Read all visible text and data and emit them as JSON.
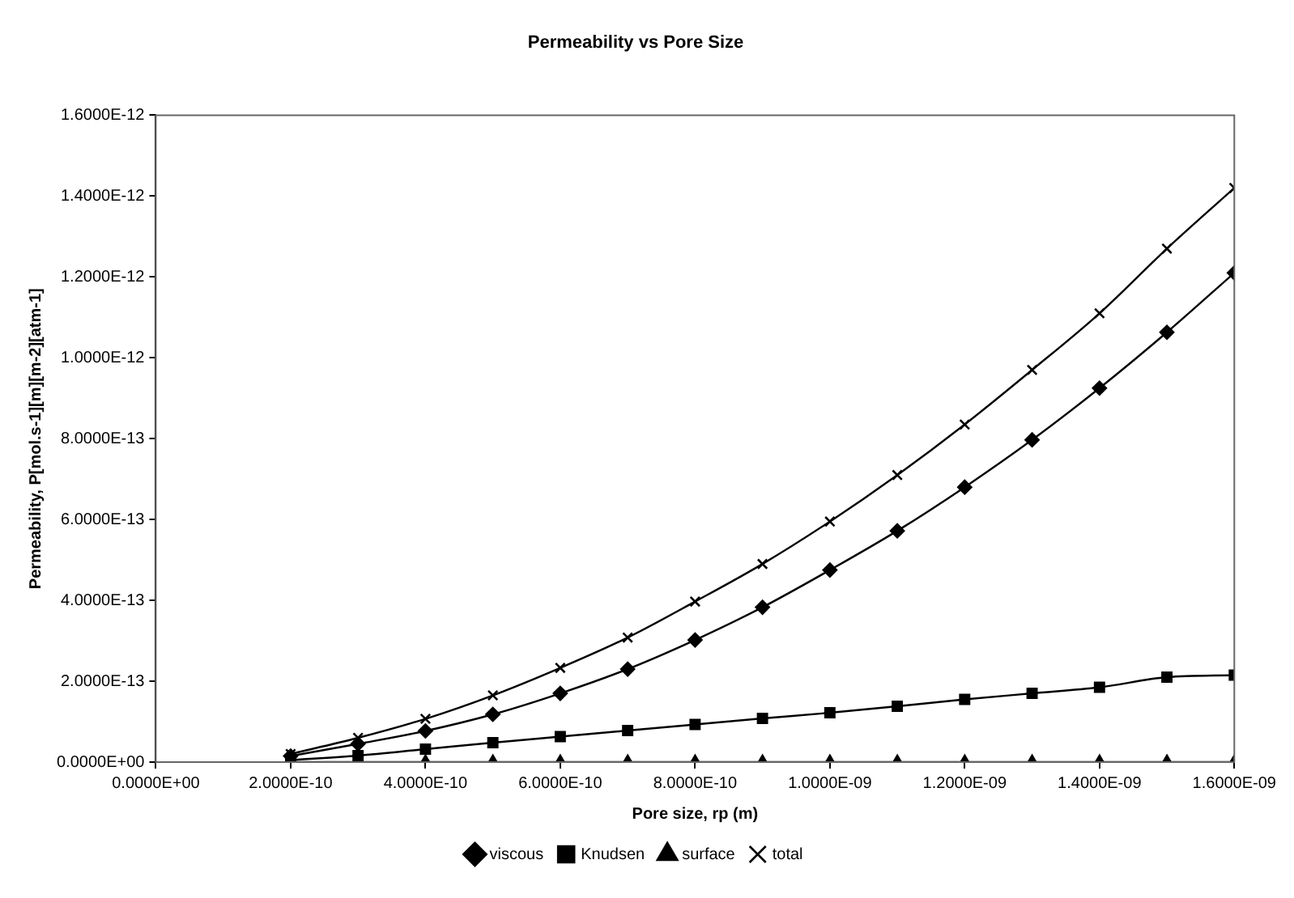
{
  "chart_data": {
    "type": "line",
    "title": "Permeability vs Pore Size",
    "xlabel": "Pore size, rp (m)",
    "ylabel": "Permeability, P[mol.s-1][m][m-2][atm-1]",
    "x": [
      2e-10,
      3e-10,
      4e-10,
      5e-10,
      6e-10,
      7e-10,
      8e-10,
      9e-10,
      1e-09,
      1.1e-09,
      1.2e-09,
      1.3e-09,
      1.4e-09,
      1.5e-09,
      1.6e-09
    ],
    "series": [
      {
        "name": "viscous",
        "color": "#000000",
        "marker": "diamond",
        "values": [
          1.5e-14,
          4.5e-14,
          7.7e-14,
          1.18e-13,
          1.7e-13,
          2.3e-13,
          3.02e-13,
          3.83e-13,
          4.75e-13,
          5.72e-13,
          6.8e-13,
          7.97e-13,
          9.25e-13,
          1.063e-12,
          1.21e-12
        ]
      },
      {
        "name": "Knudsen",
        "color": "#000000",
        "marker": "square",
        "values": [
          5e-15,
          1.6e-14,
          3.2e-14,
          4.8e-14,
          6.3e-14,
          7.8e-14,
          9.3e-14,
          1.08e-13,
          1.22e-13,
          1.38e-13,
          1.55e-13,
          1.7e-13,
          1.85e-13,
          2.1e-13,
          2.15e-13
        ]
      },
      {
        "name": "surface",
        "color": "#000000",
        "marker": "triangle",
        "values": [
          0,
          0,
          0,
          0,
          0,
          0,
          0,
          0,
          0,
          0,
          0,
          0,
          0,
          0,
          0
        ]
      },
      {
        "name": "total",
        "color": "#000000",
        "marker": "cross",
        "values": [
          2e-14,
          6e-14,
          1.07e-13,
          1.65e-13,
          2.33e-13,
          3.08e-13,
          3.97e-13,
          4.9e-13,
          5.95e-13,
          7.1e-13,
          8.35e-13,
          9.7e-13,
          1.11e-12,
          1.27e-12,
          1.42e-12
        ]
      }
    ],
    "xlim": [
      0,
      1.6e-09
    ],
    "xticks": [
      {
        "value": 0,
        "label": "0.0000E+00"
      },
      {
        "value": 2e-10,
        "label": "2.0000E-10"
      },
      {
        "value": 4e-10,
        "label": "4.0000E-10"
      },
      {
        "value": 6e-10,
        "label": "6.0000E-10"
      },
      {
        "value": 8e-10,
        "label": "8.0000E-10"
      },
      {
        "value": 1e-09,
        "label": "1.0000E-09"
      },
      {
        "value": 1.2e-09,
        "label": "1.2000E-09"
      },
      {
        "value": 1.4e-09,
        "label": "1.4000E-09"
      },
      {
        "value": 1.6e-09,
        "label": "1.6000E-09"
      }
    ],
    "ylim": [
      0,
      1.6e-12
    ],
    "yticks": [
      {
        "value": 0,
        "label": "0.0000E+00"
      },
      {
        "value": 2e-13,
        "label": "2.0000E-13"
      },
      {
        "value": 4e-13,
        "label": "4.0000E-13"
      },
      {
        "value": 6e-13,
        "label": "6.0000E-13"
      },
      {
        "value": 8e-13,
        "label": "8.0000E-13"
      },
      {
        "value": 1e-12,
        "label": "1.0000E-12"
      },
      {
        "value": 1.2e-12,
        "label": "1.2000E-12"
      },
      {
        "value": 1.4e-12,
        "label": "1.4000E-12"
      },
      {
        "value": 1.6e-12,
        "label": "1.6000E-12"
      }
    ],
    "grid": false,
    "legend": "bottom",
    "line_style": "solid"
  }
}
